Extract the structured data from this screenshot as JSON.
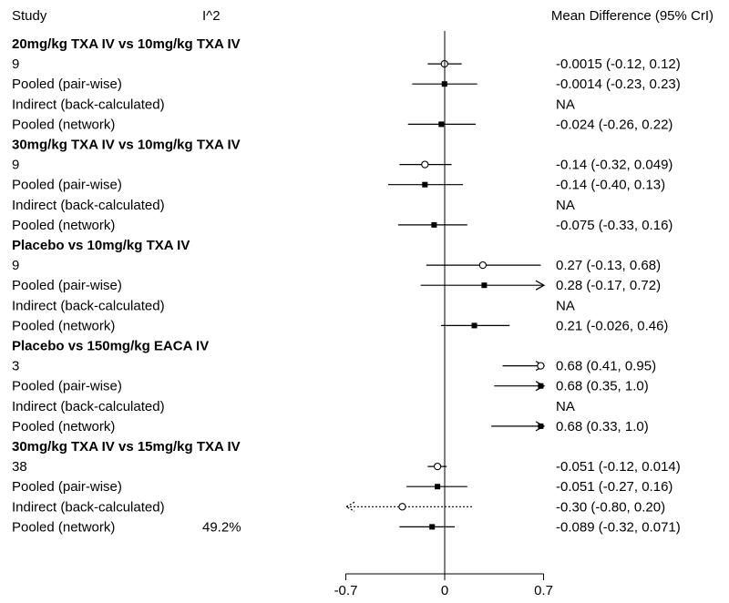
{
  "chart_data": {
    "type": "forest",
    "headers": {
      "study": "Study",
      "i2": "I^2",
      "estimate": "Mean Difference (95% CrI)"
    },
    "x_axis": {
      "ticks": [
        -0.7,
        0,
        0.7
      ],
      "tick_labels": [
        "-0.7",
        "0",
        "0.7"
      ],
      "xlim": [
        -0.7,
        0.7
      ],
      "reference_line": 0
    },
    "marker_legend": {
      "open_circle": "direct / single-study estimates",
      "filled_square": "pooled estimates"
    },
    "groups": [
      {
        "title": "20mg/kg TXA IV vs 10mg/kg TXA IV",
        "rows": [
          {
            "label": "9",
            "i2": "",
            "est": -0.0015,
            "lo": -0.12,
            "hi": 0.12,
            "text": "-0.0015 (-0.12, 0.12)",
            "marker": "open"
          },
          {
            "label": "Pooled (pair-wise)",
            "i2": "",
            "est": -0.0014,
            "lo": -0.23,
            "hi": 0.23,
            "text": "-0.0014 (-0.23, 0.23)",
            "marker": "filled"
          },
          {
            "label": "Indirect (back-calculated)",
            "i2": "",
            "est": null,
            "lo": null,
            "hi": null,
            "text": "NA",
            "marker": "none"
          },
          {
            "label": "Pooled (network)",
            "i2": "",
            "est": -0.024,
            "lo": -0.26,
            "hi": 0.22,
            "text": "-0.024 (-0.26, 0.22)",
            "marker": "filled"
          }
        ]
      },
      {
        "title": "30mg/kg TXA IV vs 10mg/kg TXA IV",
        "rows": [
          {
            "label": "9",
            "i2": "",
            "est": -0.14,
            "lo": -0.32,
            "hi": 0.049,
            "text": "-0.14 (-0.32, 0.049)",
            "marker": "open"
          },
          {
            "label": "Pooled (pair-wise)",
            "i2": "",
            "est": -0.14,
            "lo": -0.4,
            "hi": 0.13,
            "text": "-0.14 (-0.40, 0.13)",
            "marker": "filled"
          },
          {
            "label": "Indirect (back-calculated)",
            "i2": "",
            "est": null,
            "lo": null,
            "hi": null,
            "text": "NA",
            "marker": "none"
          },
          {
            "label": "Pooled (network)",
            "i2": "",
            "est": -0.075,
            "lo": -0.33,
            "hi": 0.16,
            "text": "-0.075 (-0.33, 0.16)",
            "marker": "filled"
          }
        ]
      },
      {
        "title": "Placebo vs 10mg/kg TXA IV",
        "rows": [
          {
            "label": "9",
            "i2": "",
            "est": 0.27,
            "lo": -0.13,
            "hi": 0.68,
            "text": "0.27 (-0.13, 0.68)",
            "marker": "open"
          },
          {
            "label": "Pooled (pair-wise)",
            "i2": "",
            "est": 0.28,
            "lo": -0.17,
            "hi": 0.72,
            "text": "0.28 (-0.17, 0.72)",
            "marker": "filled"
          },
          {
            "label": "Indirect (back-calculated)",
            "i2": "",
            "est": null,
            "lo": null,
            "hi": null,
            "text": "NA",
            "marker": "none"
          },
          {
            "label": "Pooled (network)",
            "i2": "",
            "est": 0.21,
            "lo": -0.026,
            "hi": 0.46,
            "text": "0.21 (-0.026, 0.46)",
            "marker": "filled"
          }
        ]
      },
      {
        "title": "Placebo vs 150mg/kg EACA IV",
        "rows": [
          {
            "label": "3",
            "i2": "",
            "est": 0.68,
            "lo": 0.41,
            "hi": 0.95,
            "text": "0.68 (0.41, 0.95)",
            "marker": "open"
          },
          {
            "label": "Pooled (pair-wise)",
            "i2": "",
            "est": 0.68,
            "lo": 0.35,
            "hi": 1.0,
            "text": "0.68 (0.35, 1.0)",
            "marker": "filled"
          },
          {
            "label": "Indirect (back-calculated)",
            "i2": "",
            "est": null,
            "lo": null,
            "hi": null,
            "text": "NA",
            "marker": "none"
          },
          {
            "label": "Pooled (network)",
            "i2": "",
            "est": 0.68,
            "lo": 0.33,
            "hi": 1.0,
            "text": "0.68 (0.33, 1.0)",
            "marker": "filled"
          }
        ]
      },
      {
        "title": "30mg/kg TXA IV vs 15mg/kg TXA IV",
        "rows": [
          {
            "label": "38",
            "i2": "",
            "est": -0.051,
            "lo": -0.12,
            "hi": 0.014,
            "text": "-0.051 (-0.12, 0.014)",
            "marker": "open"
          },
          {
            "label": "Pooled (pair-wise)",
            "i2": "",
            "est": -0.051,
            "lo": -0.27,
            "hi": 0.16,
            "text": "-0.051 (-0.27, 0.16)",
            "marker": "filled"
          },
          {
            "label": "Indirect (back-calculated)",
            "i2": "",
            "est": -0.3,
            "lo": -0.8,
            "hi": 0.2,
            "text": "-0.30 (-0.80, 0.20)",
            "marker": "open",
            "dotted": true
          },
          {
            "label": "Pooled (network)",
            "i2": "49.2%",
            "est": -0.089,
            "lo": -0.32,
            "hi": 0.071,
            "text": "-0.089 (-0.32, 0.071)",
            "marker": "filled"
          }
        ]
      }
    ]
  }
}
